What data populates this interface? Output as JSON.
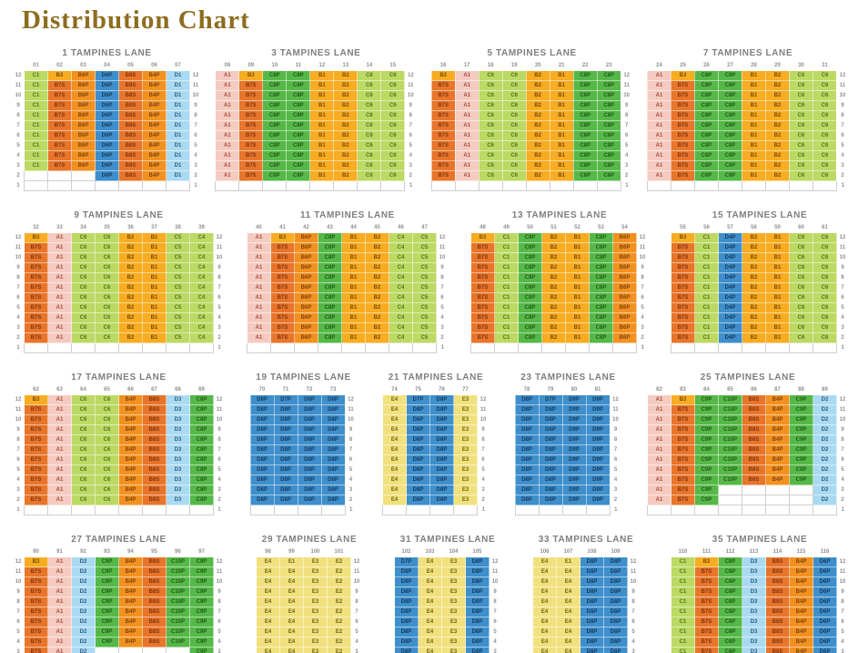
{
  "chart_data": {
    "type": "table",
    "title": "Distribution Chart",
    "row_labels": [
      "12",
      "11",
      "10",
      "9",
      "8",
      "7",
      "6",
      "5",
      "4",
      "3",
      "2",
      "1"
    ],
    "families": [
      {
        "label": "pink",
        "codes": [
          "A1"
        ],
        "bg": "#F5CBC1",
        "fg": "#A64C3C"
      },
      {
        "label": "amber",
        "codes": [
          "B1",
          "B2",
          "B3"
        ],
        "bg": "#F7AC22",
        "fg": "#7A4A06"
      },
      {
        "label": "dark-orange",
        "codes": [
          "B7S",
          "B8S"
        ],
        "bg": "#E8752A",
        "fg": "#7E3413"
      },
      {
        "label": "orange",
        "codes": [
          "B4P",
          "B6P"
        ],
        "bg": "#F39120",
        "fg": "#7C4410"
      },
      {
        "label": "light-green",
        "codes": [
          "C1",
          "C4",
          "C5",
          "C6"
        ],
        "bg": "#BCD964",
        "fg": "#55701D"
      },
      {
        "label": "green",
        "codes": [
          "C8P",
          "C9P",
          "C10P"
        ],
        "bg": "#56B848",
        "fg": "#1F5A14"
      },
      {
        "label": "light-blue",
        "codes": [
          "D1",
          "D2",
          "D3"
        ],
        "bg": "#AADAF2",
        "fg": "#2C5E80"
      },
      {
        "label": "blue",
        "codes": [
          "D4P",
          "D6P",
          "D7P",
          "D8P",
          "D9P"
        ],
        "bg": "#3E8FCB",
        "fg": "#16395B"
      },
      {
        "label": "yellow",
        "codes": [
          "E1",
          "E2",
          "E3",
          "E4"
        ],
        "bg": "#F1E17E",
        "fg": "#6E6414"
      }
    ],
    "grids": [
      {
        "band": 1,
        "name": "1 TAMPINES LANE",
        "cols": [
          "01",
          "02",
          "03",
          "04",
          "05",
          "06",
          "07"
        ],
        "pattern": {
          "12": [
            "C1",
            "B3",
            "B6P",
            "D6P",
            "B8S",
            "B4P",
            "D1"
          ],
          "11-3": [
            "C1",
            "B7S",
            "B6P",
            "D6P",
            "B8S",
            "B4P",
            "D1"
          ],
          "2": [
            "",
            "",
            "",
            "D6P",
            "B8S",
            "B4P",
            "D1"
          ],
          "1": "empty"
        }
      },
      {
        "band": 1,
        "name": "3 TAMPINES LANE",
        "cols": [
          "08",
          "09",
          "10",
          "11",
          "12",
          "13",
          "14",
          "15"
        ],
        "pattern": {
          "12": [
            "A1",
            "B3",
            "C8P",
            "C8P",
            "B1",
            "B2",
            "C6",
            "C6"
          ],
          "11-2": [
            "A1",
            "B7S",
            "C8P",
            "C8P",
            "B1",
            "B2",
            "C6",
            "C6"
          ],
          "1": "empty"
        }
      },
      {
        "band": 1,
        "name": "5 TAMPINES LANE",
        "cols": [
          "16",
          "17",
          "18",
          "19",
          "20",
          "21",
          "22",
          "23"
        ],
        "pattern": {
          "12": [
            "B3",
            "A1",
            "C6",
            "C6",
            "B2",
            "B1",
            "C8P",
            "C8P"
          ],
          "11-2": [
            "B7S",
            "A1",
            "C6",
            "C6",
            "B2",
            "B1",
            "C8P",
            "C8P"
          ],
          "1": "empty"
        }
      },
      {
        "band": 1,
        "name": "7 TAMPINES LANE",
        "cols": [
          "24",
          "25",
          "26",
          "27",
          "28",
          "29",
          "30",
          "31"
        ],
        "pattern": {
          "12": [
            "A1",
            "B3",
            "C8P",
            "C8P",
            "B1",
            "B2",
            "C6",
            "C6"
          ],
          "11-2": [
            "A1",
            "B7S",
            "C8P",
            "C8P",
            "B1",
            "B2",
            "C6",
            "C6"
          ],
          "1": "empty"
        }
      },
      {
        "band": 2,
        "name": "9 TAMPINES LANE",
        "cols": [
          "32",
          "33",
          "34",
          "35",
          "36",
          "37",
          "38",
          "39"
        ],
        "pattern": {
          "12": [
            "B3",
            "A1",
            "C6",
            "C6",
            "B2",
            "B1",
            "C5",
            "C4"
          ],
          "11-2": [
            "B7S",
            "A1",
            "C6",
            "C6",
            "B2",
            "B1",
            "C5",
            "C4"
          ],
          "1": "empty"
        }
      },
      {
        "band": 2,
        "name": "11 TAMPINES LANE",
        "cols": [
          "40",
          "41",
          "42",
          "43",
          "44",
          "45",
          "46",
          "47"
        ],
        "pattern": {
          "12": [
            "A1",
            "B3",
            "B6P",
            "C8P",
            "B1",
            "B2",
            "C4",
            "C5"
          ],
          "11-2": [
            "A1",
            "B7S",
            "B6P",
            "C8P",
            "B1",
            "B2",
            "C4",
            "C5"
          ],
          "1": "empty"
        }
      },
      {
        "band": 2,
        "name": "13 TAMPINES LANE",
        "cols": [
          "48",
          "49",
          "50",
          "51",
          "52",
          "53",
          "54"
        ],
        "pattern": {
          "12": [
            "B3",
            "C1",
            "C8P",
            "B2",
            "B1",
            "C8P",
            "B6P"
          ],
          "11-2": [
            "B7S",
            "C1",
            "C8P",
            "B2",
            "B1",
            "C8P",
            "B6P"
          ],
          "1": "empty"
        }
      },
      {
        "band": 2,
        "name": "15 TAMPINES LANE",
        "cols": [
          "55",
          "56",
          "57",
          "58",
          "59",
          "60",
          "61"
        ],
        "pattern": {
          "12": [
            "B3",
            "C1",
            "D4P",
            "B2",
            "B1",
            "C6",
            "C6"
          ],
          "11-2": [
            "B7S",
            "C1",
            "D4P",
            "B2",
            "B1",
            "C6",
            "C6"
          ],
          "1": "empty"
        }
      },
      {
        "band": 3,
        "name": "17 TAMPINES LANE",
        "cols": [
          "62",
          "63",
          "64",
          "65",
          "66",
          "67",
          "68",
          "69"
        ],
        "pattern": {
          "12": [
            "B3",
            "A1",
            "C6",
            "C6",
            "B4P",
            "B8S",
            "D3",
            "C8P"
          ],
          "11-2": [
            "B7S",
            "A1",
            "C6",
            "C6",
            "B4P",
            "B8S",
            "D3",
            "C8P"
          ],
          "1": "empty"
        }
      },
      {
        "band": 3,
        "name": "19 TAMPINES LANE",
        "cols": [
          "70",
          "71",
          "72",
          "73"
        ],
        "pattern": {
          "12": [
            "D8P",
            "D7P",
            "D8P",
            "D8P"
          ],
          "11-2": [
            "D8P",
            "D8P",
            "D8P",
            "D8P"
          ],
          "1": "empty"
        }
      },
      {
        "band": 3,
        "name": "21 TAMPINES LANE",
        "cols": [
          "74",
          "75",
          "76",
          "77"
        ],
        "pattern": {
          "12": [
            "E4",
            "D7P",
            "D8P",
            "E3"
          ],
          "11-2": [
            "E4",
            "D8P",
            "D8P",
            "E3"
          ],
          "1": "empty"
        }
      },
      {
        "band": 3,
        "name": "23 TAMPINES LANE",
        "cols": [
          "78",
          "79",
          "80",
          "81"
        ],
        "pattern": {
          "12": [
            "D8P",
            "D7P",
            "D9P",
            "D9P"
          ],
          "11-2": [
            "D8P",
            "D8P",
            "D9P",
            "D9P"
          ],
          "1": "empty"
        }
      },
      {
        "band": 3,
        "name": "25 TAMPINES LANE",
        "cols": [
          "82",
          "83",
          "84",
          "85",
          "86",
          "87",
          "88",
          "89"
        ],
        "pattern": {
          "12": [
            "A1",
            "B3",
            "C9P",
            "C10P",
            "B8S",
            "B4P",
            "C9P",
            "D2"
          ],
          "11-4": [
            "A1",
            "B7S",
            "C9P",
            "C10P",
            "B8S",
            "B4P",
            "C9P",
            "D2"
          ],
          "3-2": [
            "A1",
            "B7S",
            "C9P",
            "",
            "",
            "",
            "",
            "D2"
          ],
          "1": "empty"
        }
      },
      {
        "band": 4,
        "name": "27 TAMPINES LANE",
        "cols": [
          "90",
          "91",
          "92",
          "93",
          "94",
          "95",
          "96",
          "97"
        ],
        "pattern": {
          "12": [
            "B3",
            "A1",
            "D2",
            "C9P",
            "B4P",
            "B8S",
            "C10P",
            "C9P"
          ],
          "11-4": [
            "B7S",
            "A1",
            "D2",
            "C9P",
            "B4P",
            "B8S",
            "C10P",
            "C9P"
          ],
          "3-2": [
            "B7S",
            "A1",
            "D2",
            "",
            "",
            "",
            "",
            "C9P"
          ],
          "1": "empty"
        }
      },
      {
        "band": 4,
        "name": "29 TAMPINES LANE",
        "cols": [
          "98",
          "99",
          "100",
          "101"
        ],
        "pattern": {
          "12": [
            "E4",
            "E1",
            "E3",
            "E2"
          ],
          "11-2": [
            "E4",
            "E4",
            "E3",
            "E2"
          ],
          "1": "empty"
        }
      },
      {
        "band": 4,
        "name": "31 TAMPINES LANE",
        "cols": [
          "102",
          "103",
          "104",
          "105"
        ],
        "pattern": {
          "12": [
            "D7P",
            "E4",
            "E3",
            "D8P"
          ],
          "11-2": [
            "D8P",
            "E4",
            "E3",
            "D8P"
          ],
          "1": "empty"
        }
      },
      {
        "band": 4,
        "name": "33 TAMPINES LANE",
        "cols": [
          "106",
          "107",
          "108",
          "109"
        ],
        "pattern": {
          "12": [
            "E4",
            "E1",
            "D8P",
            "D8P"
          ],
          "11-2": [
            "E4",
            "E4",
            "D8P",
            "D8P"
          ],
          "1": "empty"
        }
      },
      {
        "band": 4,
        "name": "35 TAMPINES LANE",
        "cols": [
          "110",
          "111",
          "112",
          "113",
          "114",
          "115",
          "116"
        ],
        "pattern": {
          "12": [
            "C1",
            "B3",
            "C8P",
            "D3",
            "B8S",
            "B4P",
            "D6P"
          ],
          "11-2": [
            "C1",
            "B7S",
            "C8P",
            "D3",
            "B8S",
            "B4P",
            "D6P"
          ],
          "1": "empty"
        }
      }
    ]
  }
}
